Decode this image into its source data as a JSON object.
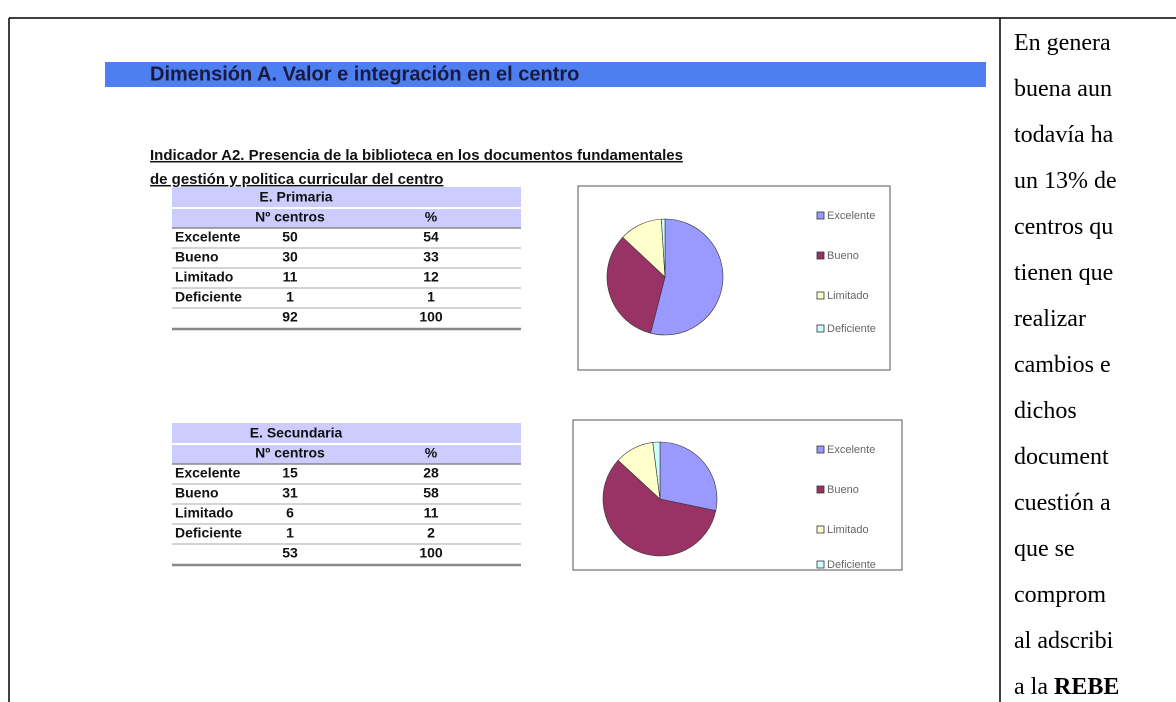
{
  "header": {
    "title": "Dimensión A. Valor e integración en el centro",
    "subtitle_lines": [
      "Indicador A2. Presencia de la biblioteca en los documentos fundamentales ",
      "de gestión y politica curricular del centro"
    ]
  },
  "tables": [
    {
      "title": "E. Primaria",
      "columns": [
        "Nº centros",
        "%"
      ],
      "rows": [
        [
          "Excelente",
          50,
          54
        ],
        [
          "Bueno",
          30,
          33
        ],
        [
          "Limitado",
          11,
          12
        ],
        [
          "Deficiente",
          1,
          1
        ]
      ],
      "totals": [
        92,
        100
      ]
    },
    {
      "title": "E. Secundaria",
      "columns": [
        "Nº centros",
        "%"
      ],
      "rows": [
        [
          "Excelente",
          15,
          28
        ],
        [
          "Bueno",
          31,
          58
        ],
        [
          "Limitado",
          6,
          11
        ],
        [
          "Deficiente",
          1,
          2
        ]
      ],
      "totals": [
        53,
        100
      ]
    }
  ],
  "chart_data": [
    {
      "type": "pie",
      "categories": [
        "Excelente",
        "Bueno",
        "Limitado",
        "Deficiente"
      ],
      "values": [
        54,
        33,
        12,
        1
      ],
      "colors": [
        "#9999ff",
        "#993366",
        "#ffffcc",
        "#ccffff"
      ]
    },
    {
      "type": "pie",
      "categories": [
        "Excelente",
        "Bueno",
        "Limitado",
        "Deficiente"
      ],
      "values": [
        28,
        58,
        11,
        2
      ],
      "colors": [
        "#9999ff",
        "#993366",
        "#ffffcc",
        "#ccffff"
      ]
    }
  ],
  "side_text": {
    "lines": [
      "En genera",
      "buena aun",
      "todavía ha",
      "un 13% de",
      "centros qu",
      "tienen que",
      "realizar",
      "cambios e",
      "dichos",
      "document",
      "cuestión a",
      "que se",
      "comprom",
      "al adscribi",
      "a la "
    ],
    "bold_end": "REBE"
  }
}
